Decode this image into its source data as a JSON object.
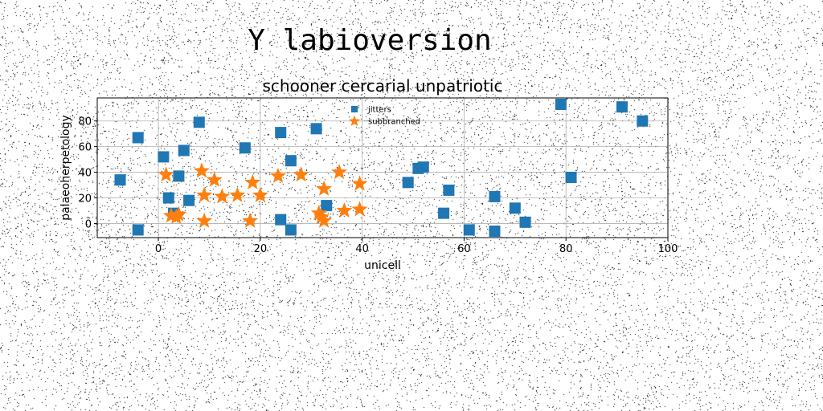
{
  "figure": {
    "suptitle": "Y labioversion"
  },
  "chart_data": {
    "type": "scatter",
    "title": "schooner cercarial unpatriotic",
    "xlabel": "unicell",
    "ylabel": "palaeoherpetology",
    "xlim": [
      -12,
      100
    ],
    "ylim": [
      -11,
      98
    ],
    "xticks": [
      0,
      20,
      40,
      60,
      80,
      100
    ],
    "yticks": [
      0,
      20,
      40,
      60,
      80
    ],
    "grid": true,
    "legend_position": "top-center",
    "series": [
      {
        "name": "jitters",
        "marker": "square",
        "color": "#1f77b4",
        "points": [
          [
            -7.5,
            34
          ],
          [
            -4,
            67
          ],
          [
            -4,
            -5
          ],
          [
            1,
            52
          ],
          [
            2,
            20
          ],
          [
            3,
            8
          ],
          [
            4,
            37
          ],
          [
            5,
            57
          ],
          [
            6,
            18
          ],
          [
            8,
            79
          ],
          [
            17,
            59
          ],
          [
            24,
            71
          ],
          [
            24,
            3
          ],
          [
            26,
            49
          ],
          [
            26,
            -5
          ],
          [
            31,
            74
          ],
          [
            33,
            14
          ],
          [
            49,
            32
          ],
          [
            51,
            43
          ],
          [
            52,
            44
          ],
          [
            56,
            8
          ],
          [
            57,
            26
          ],
          [
            61,
            -5
          ],
          [
            66,
            21
          ],
          [
            66,
            -6
          ],
          [
            70,
            12
          ],
          [
            72,
            1
          ],
          [
            79,
            93
          ],
          [
            81,
            36
          ],
          [
            91,
            91
          ],
          [
            95,
            80
          ]
        ]
      },
      {
        "name": "subbranched",
        "marker": "star",
        "color": "#ff7f0e",
        "points": [
          [
            1.5,
            38
          ],
          [
            2.5,
            6
          ],
          [
            3.5,
            5
          ],
          [
            4,
            7
          ],
          [
            8.5,
            41
          ],
          [
            9,
            22
          ],
          [
            9,
            2
          ],
          [
            11,
            34
          ],
          [
            12.5,
            21
          ],
          [
            15.5,
            22
          ],
          [
            18,
            2
          ],
          [
            18.5,
            32
          ],
          [
            20,
            22
          ],
          [
            23.5,
            37
          ],
          [
            28,
            38
          ],
          [
            31.5,
            8
          ],
          [
            32,
            5
          ],
          [
            32.5,
            2
          ],
          [
            32.5,
            27
          ],
          [
            35.5,
            40
          ],
          [
            36.5,
            10
          ],
          [
            39.5,
            11
          ],
          [
            39.5,
            31
          ]
        ]
      }
    ]
  }
}
